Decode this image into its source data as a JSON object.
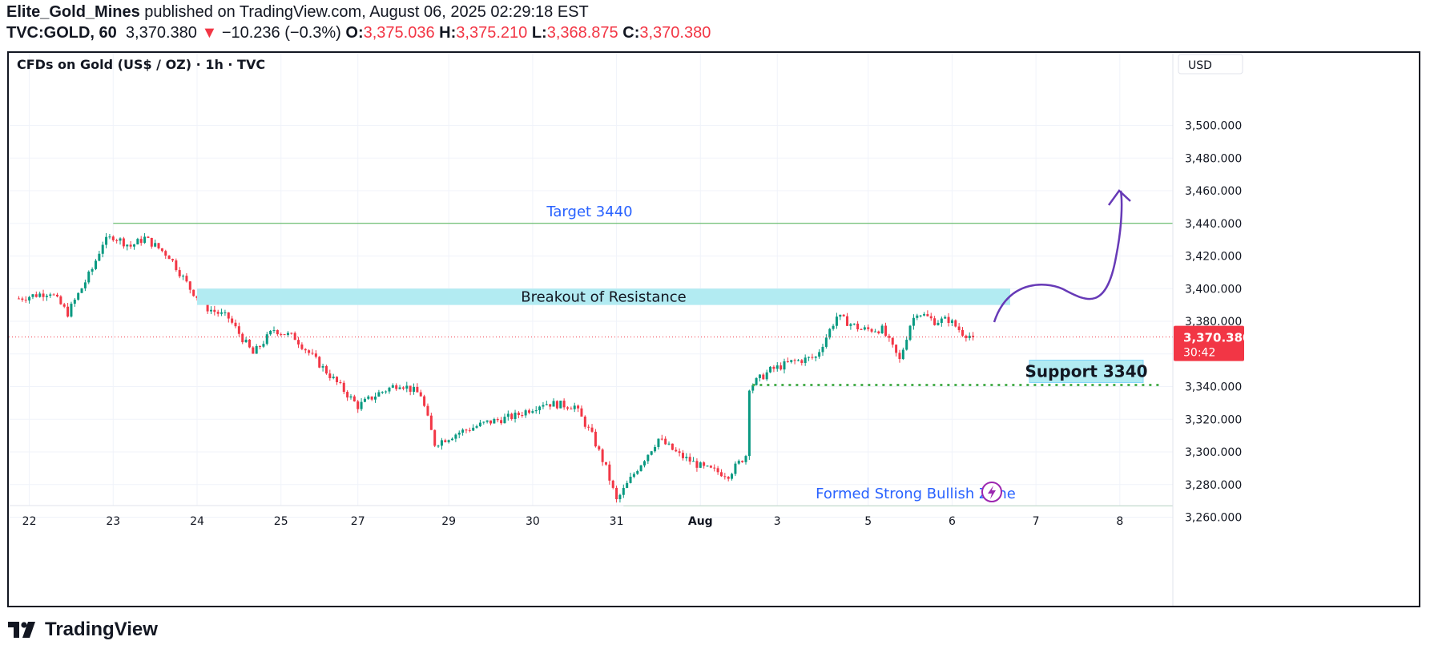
{
  "header": {
    "author": "Elite_Gold_Mines",
    "published": " published on TradingView.com, August 06, 2025 02:29:18 EST",
    "symbol": "TVC:GOLD, 60",
    "last": "3,370.380",
    "change_arrow": "▼",
    "change": "−10.236 (−0.3%)",
    "o_label": "O:",
    "o": "3,375.036",
    "h_label": "H:",
    "h": "3,375.210",
    "l_label": "L:",
    "l": "3,368.875",
    "c_label": "C:",
    "c": "3,370.380"
  },
  "footer": {
    "brand": "TradingView",
    "logo_icon": "tradingview-logo-icon"
  },
  "colors": {
    "up": "#089981",
    "down": "#f23645",
    "zone": "#b2ebf2",
    "annotation_blue": "#2962ff",
    "target_line": "#4caf50",
    "support_dots": "#4caf50",
    "path_purple": "#673ab7"
  },
  "chart_data": {
    "type": "candlestick",
    "title": "CFDs on Gold (US$ / OZ) · 1h · TVC",
    "currency_label": "USD",
    "ylim": [
      3245,
      3530
    ],
    "y_ticks": [
      3260,
      3280,
      3300,
      3320,
      3340,
      3360,
      3380,
      3400,
      3420,
      3440,
      3460,
      3480,
      3500
    ],
    "y_tick_labels": [
      "3,260.000",
      "3,280.000",
      "3,300.000",
      "3,320.000",
      "3,340.000",
      "3,360.000",
      "3,380.000",
      "3,400.000",
      "3,420.000",
      "3,440.000",
      "3,460.000",
      "3,480.000",
      "3,500.000"
    ],
    "x_ticks": [
      {
        "label": "22",
        "bar": 3
      },
      {
        "label": "23",
        "bar": 27
      },
      {
        "label": "24",
        "bar": 51
      },
      {
        "label": "25",
        "bar": 75
      },
      {
        "label": "27",
        "bar": 97
      },
      {
        "label": "29",
        "bar": 123
      },
      {
        "label": "30",
        "bar": 147
      },
      {
        "label": "31",
        "bar": 171
      },
      {
        "label": "Aug",
        "bar": 195,
        "bold": true
      },
      {
        "label": "3",
        "bar": 217
      },
      {
        "label": "5",
        "bar": 243
      },
      {
        "label": "6",
        "bar": 267
      },
      {
        "label": "7",
        "bar": 291
      },
      {
        "label": "8",
        "bar": 315
      }
    ],
    "last_price": {
      "value": 3370.38,
      "label": "3,370.380",
      "countdown": "30:42"
    },
    "annotations": {
      "target_label": "Target 3440",
      "target_value": 3440,
      "resistance_label": "Breakout of Resistance",
      "resistance_zone": [
        3390,
        3400
      ],
      "support_label": "Support 3340",
      "support_value": 3341,
      "bullish_label": "Formed Strong Bullish Zone",
      "bullish_value": 3267,
      "projection_icon": "lightning-icon"
    },
    "key_points": [
      {
        "bar": 0,
        "close": 3394
      },
      {
        "bar": 9,
        "close": 3398
      },
      {
        "bar": 14,
        "close": 3385
      },
      {
        "bar": 21,
        "close": 3412
      },
      {
        "bar": 24,
        "close": 3428
      },
      {
        "bar": 27,
        "close": 3432
      },
      {
        "bar": 32,
        "close": 3426
      },
      {
        "bar": 36,
        "close": 3431
      },
      {
        "bar": 43,
        "close": 3420
      },
      {
        "bar": 49,
        "close": 3400
      },
      {
        "bar": 54,
        "close": 3388
      },
      {
        "bar": 60,
        "close": 3382
      },
      {
        "bar": 67,
        "close": 3360
      },
      {
        "bar": 73,
        "close": 3375
      },
      {
        "bar": 79,
        "close": 3370
      },
      {
        "bar": 85,
        "close": 3356
      },
      {
        "bar": 92,
        "close": 3340
      },
      {
        "bar": 97,
        "close": 3328
      },
      {
        "bar": 103,
        "close": 3336
      },
      {
        "bar": 109,
        "close": 3342
      },
      {
        "bar": 115,
        "close": 3335
      },
      {
        "bar": 119,
        "close": 3305
      },
      {
        "bar": 126,
        "close": 3312
      },
      {
        "bar": 134,
        "close": 3318
      },
      {
        "bar": 142,
        "close": 3322
      },
      {
        "bar": 150,
        "close": 3330
      },
      {
        "bar": 159,
        "close": 3328
      },
      {
        "bar": 164,
        "close": 3310
      },
      {
        "bar": 168,
        "close": 3290
      },
      {
        "bar": 171,
        "close": 3270
      },
      {
        "bar": 177,
        "close": 3290
      },
      {
        "bar": 183,
        "close": 3308
      },
      {
        "bar": 189,
        "close": 3298
      },
      {
        "bar": 196,
        "close": 3290
      },
      {
        "bar": 203,
        "close": 3286
      },
      {
        "bar": 208,
        "close": 3298
      },
      {
        "bar": 209,
        "close": 3340
      },
      {
        "bar": 215,
        "close": 3350
      },
      {
        "bar": 221,
        "close": 3355
      },
      {
        "bar": 228,
        "close": 3358
      },
      {
        "bar": 234,
        "close": 3383
      },
      {
        "bar": 241,
        "close": 3375
      },
      {
        "bar": 247,
        "close": 3375
      },
      {
        "bar": 252,
        "close": 3356
      },
      {
        "bar": 255,
        "close": 3378
      },
      {
        "bar": 257,
        "close": 3386
      },
      {
        "bar": 262,
        "close": 3380
      },
      {
        "bar": 266,
        "close": 3381
      },
      {
        "bar": 270,
        "close": 3373
      },
      {
        "bar": 273,
        "close": 3370.38
      }
    ]
  }
}
